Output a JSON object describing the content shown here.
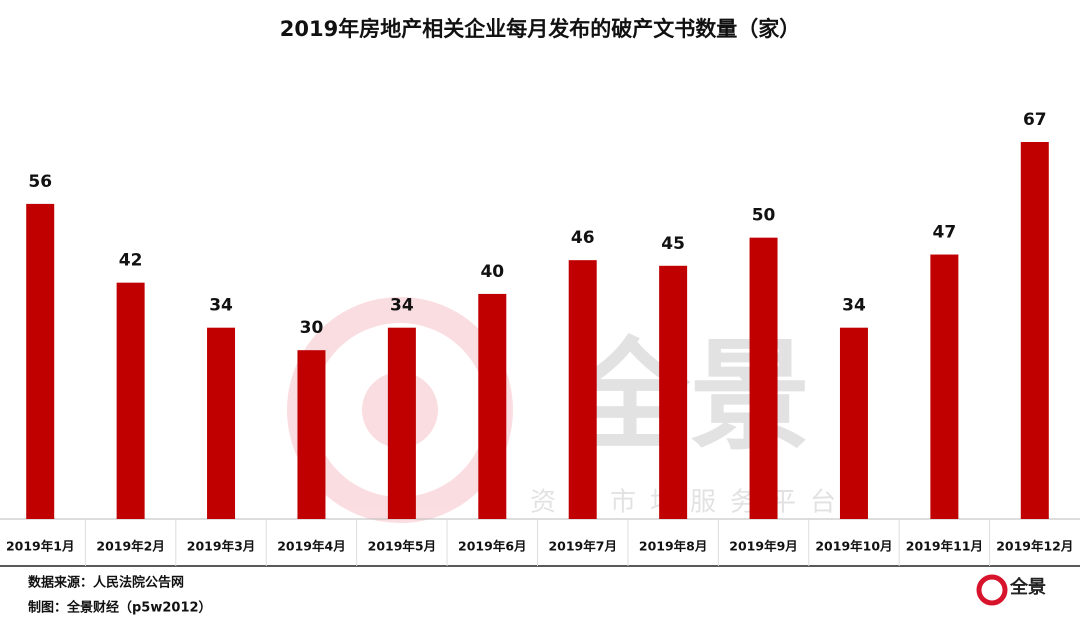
{
  "chart_data": {
    "type": "bar",
    "title": "2019年房地产相关企业每月发布的破产文书数量（家）",
    "categories": [
      "2019年1月",
      "2019年2月",
      "2019年3月",
      "2019年4月",
      "2019年5月",
      "2019年6月",
      "2019年7月",
      "2019年8月",
      "2019年9月",
      "2019年10月",
      "2019年11月",
      "2019年12月"
    ],
    "values": [
      56,
      42,
      34,
      30,
      34,
      40,
      46,
      45,
      50,
      34,
      47,
      67
    ],
    "color": "#c00000",
    "source": "数据来源：人民法院公告网",
    "credit": "制图：全景财经（p5w2012）",
    "watermark": {
      "title": "全景",
      "subtitle": "资本市场服务平台"
    },
    "logo": "全景"
  }
}
